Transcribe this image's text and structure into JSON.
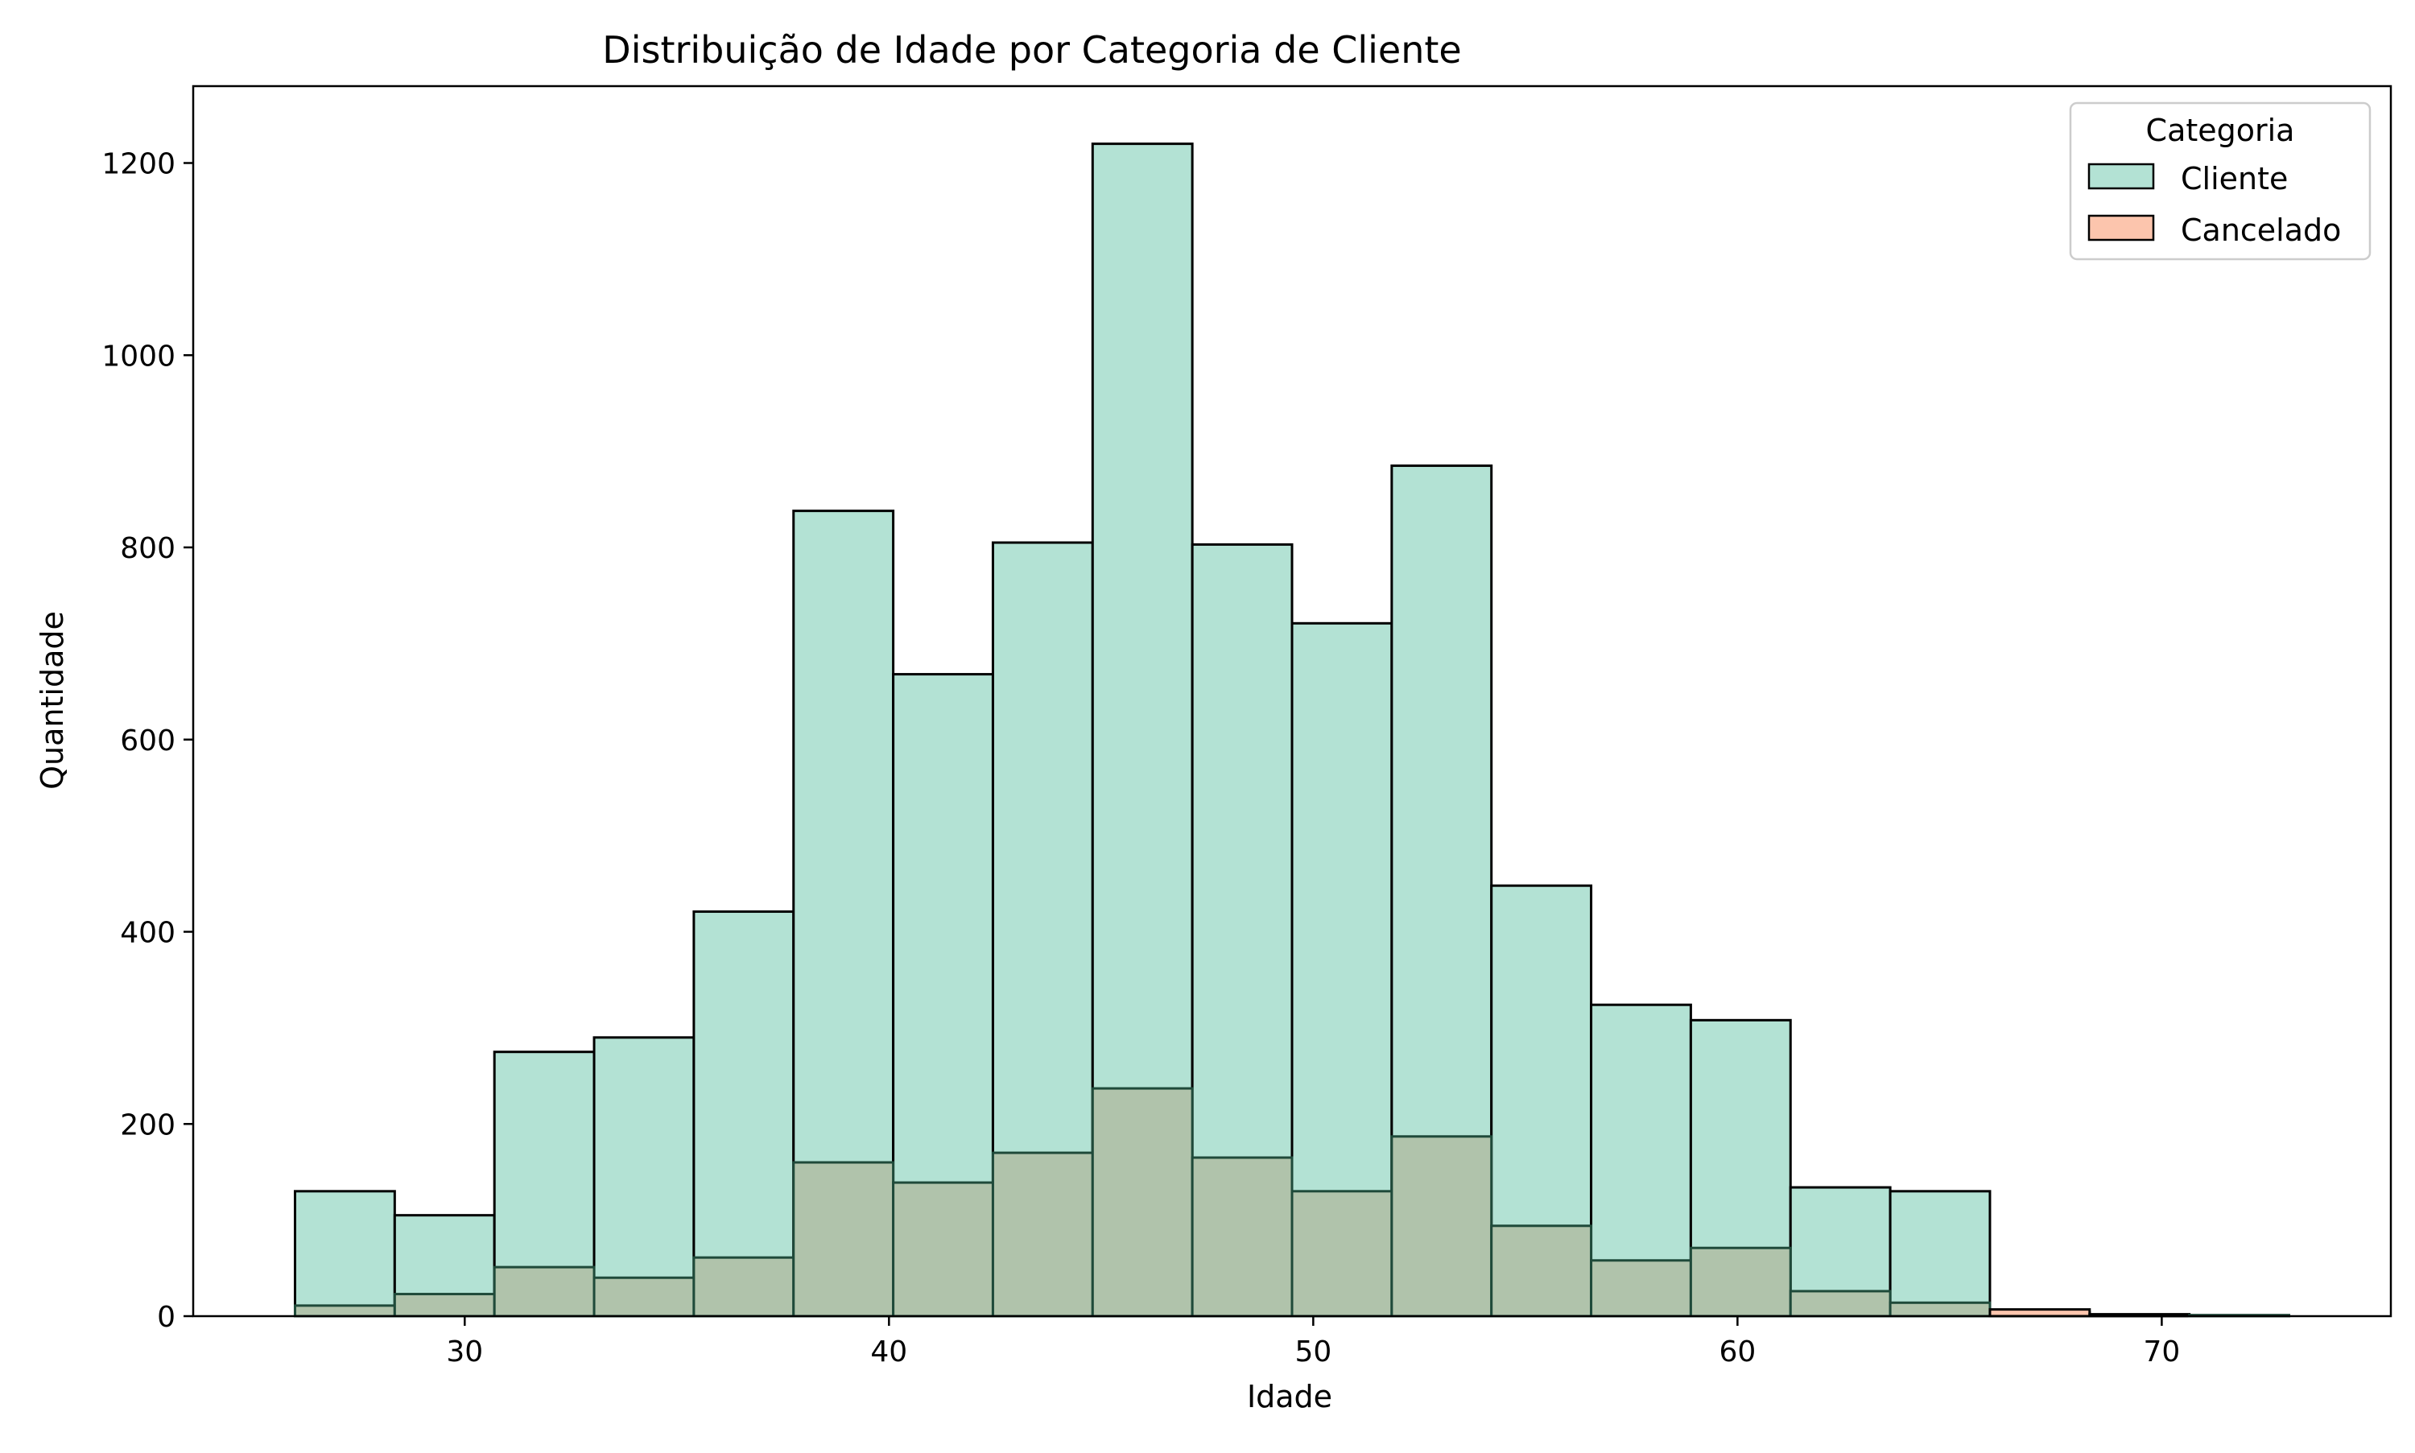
{
  "chart_data": {
    "type": "bar",
    "subtype": "histogram-overlay",
    "title": "Distribuição de Idade por Categoria de Cliente",
    "xlabel": "Idade",
    "ylabel": "Quantidade",
    "xlim": [
      23.6,
      75.4
    ],
    "ylim": [
      0,
      1280
    ],
    "x_ticks": [
      30,
      40,
      50,
      60,
      70
    ],
    "y_ticks": [
      0,
      200,
      400,
      600,
      800,
      1000,
      1200
    ],
    "grid": false,
    "legend": {
      "title": "Categoria",
      "position": "top-right",
      "entries": [
        {
          "label": "Cliente",
          "color": "#b3e2d4"
        },
        {
          "label": "Cancelado",
          "color": "#fcc5ad"
        }
      ]
    },
    "bin_edges": [
      26.0,
      28.35,
      30.7,
      33.05,
      35.4,
      37.75,
      40.1,
      42.45,
      44.8,
      47.15,
      49.5,
      51.85,
      54.2,
      56.55,
      58.9,
      61.25,
      63.6,
      65.95,
      68.3,
      70.65,
      73.0
    ],
    "series": [
      {
        "name": "Cliente",
        "color": "#b3e2d4",
        "values": [
          130,
          105,
          275,
          290,
          421,
          838,
          668,
          805,
          1220,
          803,
          721,
          885,
          448,
          324,
          308,
          134,
          130,
          4,
          1,
          1
        ]
      },
      {
        "name": "Cancelado",
        "color": "#fcc5ad",
        "values": [
          11,
          23,
          51,
          40,
          61,
          160,
          139,
          170,
          237,
          165,
          130,
          187,
          94,
          58,
          71,
          26,
          14,
          7,
          2,
          1
        ]
      }
    ],
    "overlap_color": "#b0c3ab"
  }
}
